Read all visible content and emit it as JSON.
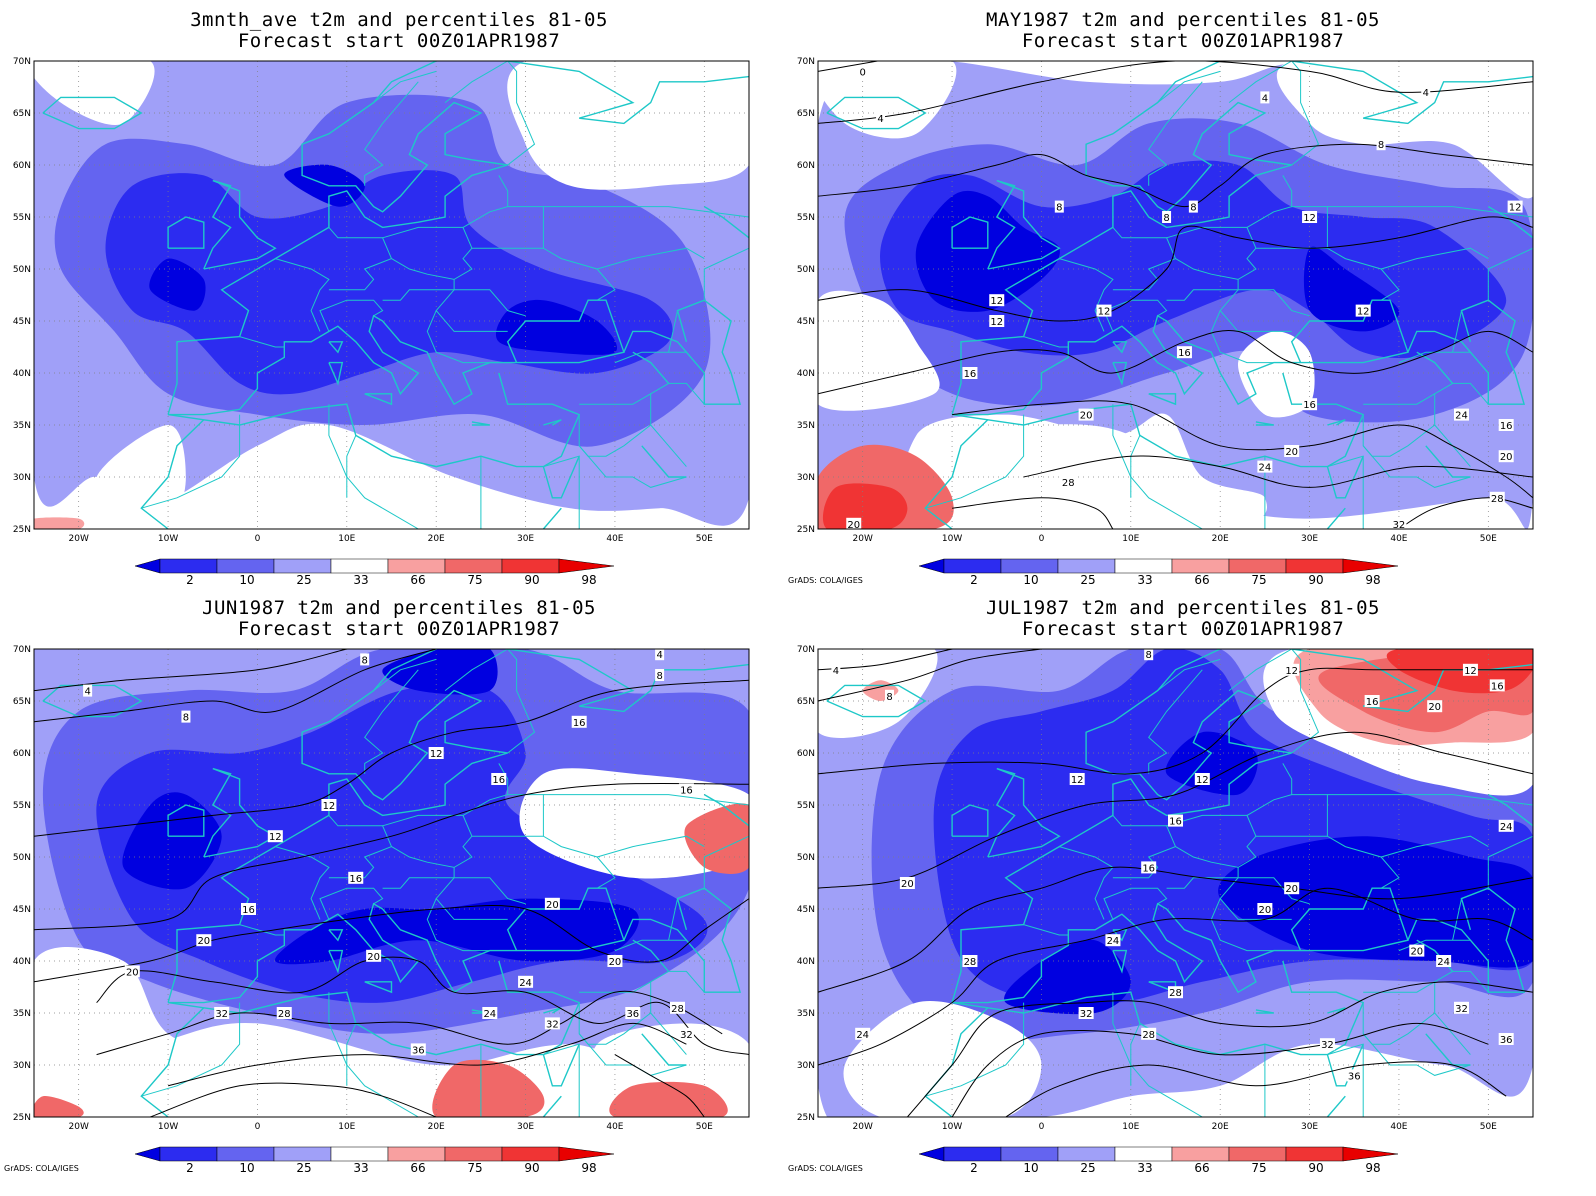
{
  "panels": [
    {
      "id": "p1",
      "title1": "3mnth_ave t2m and percentiles 81-05",
      "title2": "Forecast start 00Z01APR1987",
      "credit": "",
      "contours": []
    },
    {
      "id": "p2",
      "title1": "MAY1987 t2m and percentiles 81-05",
      "title2": "Forecast start 00Z01APR1987",
      "credit": "GrADS: COLA/IGES",
      "contours": [
        "0",
        "4",
        "4",
        "4",
        "8",
        "8",
        "8",
        "8",
        "12",
        "12",
        "12",
        "12",
        "12",
        "12",
        "16",
        "16",
        "16",
        "16",
        "20",
        "20",
        "20",
        "20",
        "24",
        "24",
        "28",
        "28",
        "32"
      ]
    },
    {
      "id": "p3",
      "title1": "JUN1987 t2m and percentiles 81-05",
      "title2": "Forecast start 00Z01APR1987",
      "credit": "GrADS: COLA/IGES",
      "contours": [
        "4",
        "4",
        "8",
        "8",
        "8",
        "12",
        "12",
        "12",
        "16",
        "16",
        "16",
        "16",
        "16",
        "20",
        "20",
        "20",
        "20",
        "20",
        "24",
        "24",
        "28",
        "28",
        "32",
        "32",
        "32",
        "36",
        "36"
      ]
    },
    {
      "id": "p4",
      "title1": "JUL1987 t2m and percentiles 81-05",
      "title2": "Forecast start 00Z01APR1987",
      "credit": "GrADS: COLA/IGES",
      "contours": [
        "4",
        "8",
        "8",
        "12",
        "12",
        "12",
        "12",
        "16",
        "16",
        "16",
        "16",
        "20",
        "20",
        "20",
        "20",
        "20",
        "24",
        "24",
        "24",
        "24",
        "28",
        "28",
        "28",
        "32",
        "32",
        "32",
        "36",
        "36"
      ]
    }
  ],
  "map": {
    "lat_labels": [
      "70N",
      "65N",
      "60N",
      "55N",
      "50N",
      "45N",
      "40N",
      "35N",
      "30N",
      "25N"
    ],
    "lon_labels": [
      "20W",
      "10W",
      "0",
      "10E",
      "20E",
      "30E",
      "40E",
      "50E"
    ]
  },
  "colorbar": {
    "labels": [
      "2",
      "10",
      "25",
      "33",
      "66",
      "75",
      "90",
      "98"
    ],
    "colors": [
      "#0000e0",
      "#2c2cf0",
      "#6464f0",
      "#a0a0f8",
      "#ffffff",
      "#f8a0a0",
      "#f06868",
      "#f03434",
      "#e80000"
    ]
  },
  "colors": {
    "coast": "#1ec8c8",
    "contour": "#000000",
    "frame": "#000000"
  }
}
